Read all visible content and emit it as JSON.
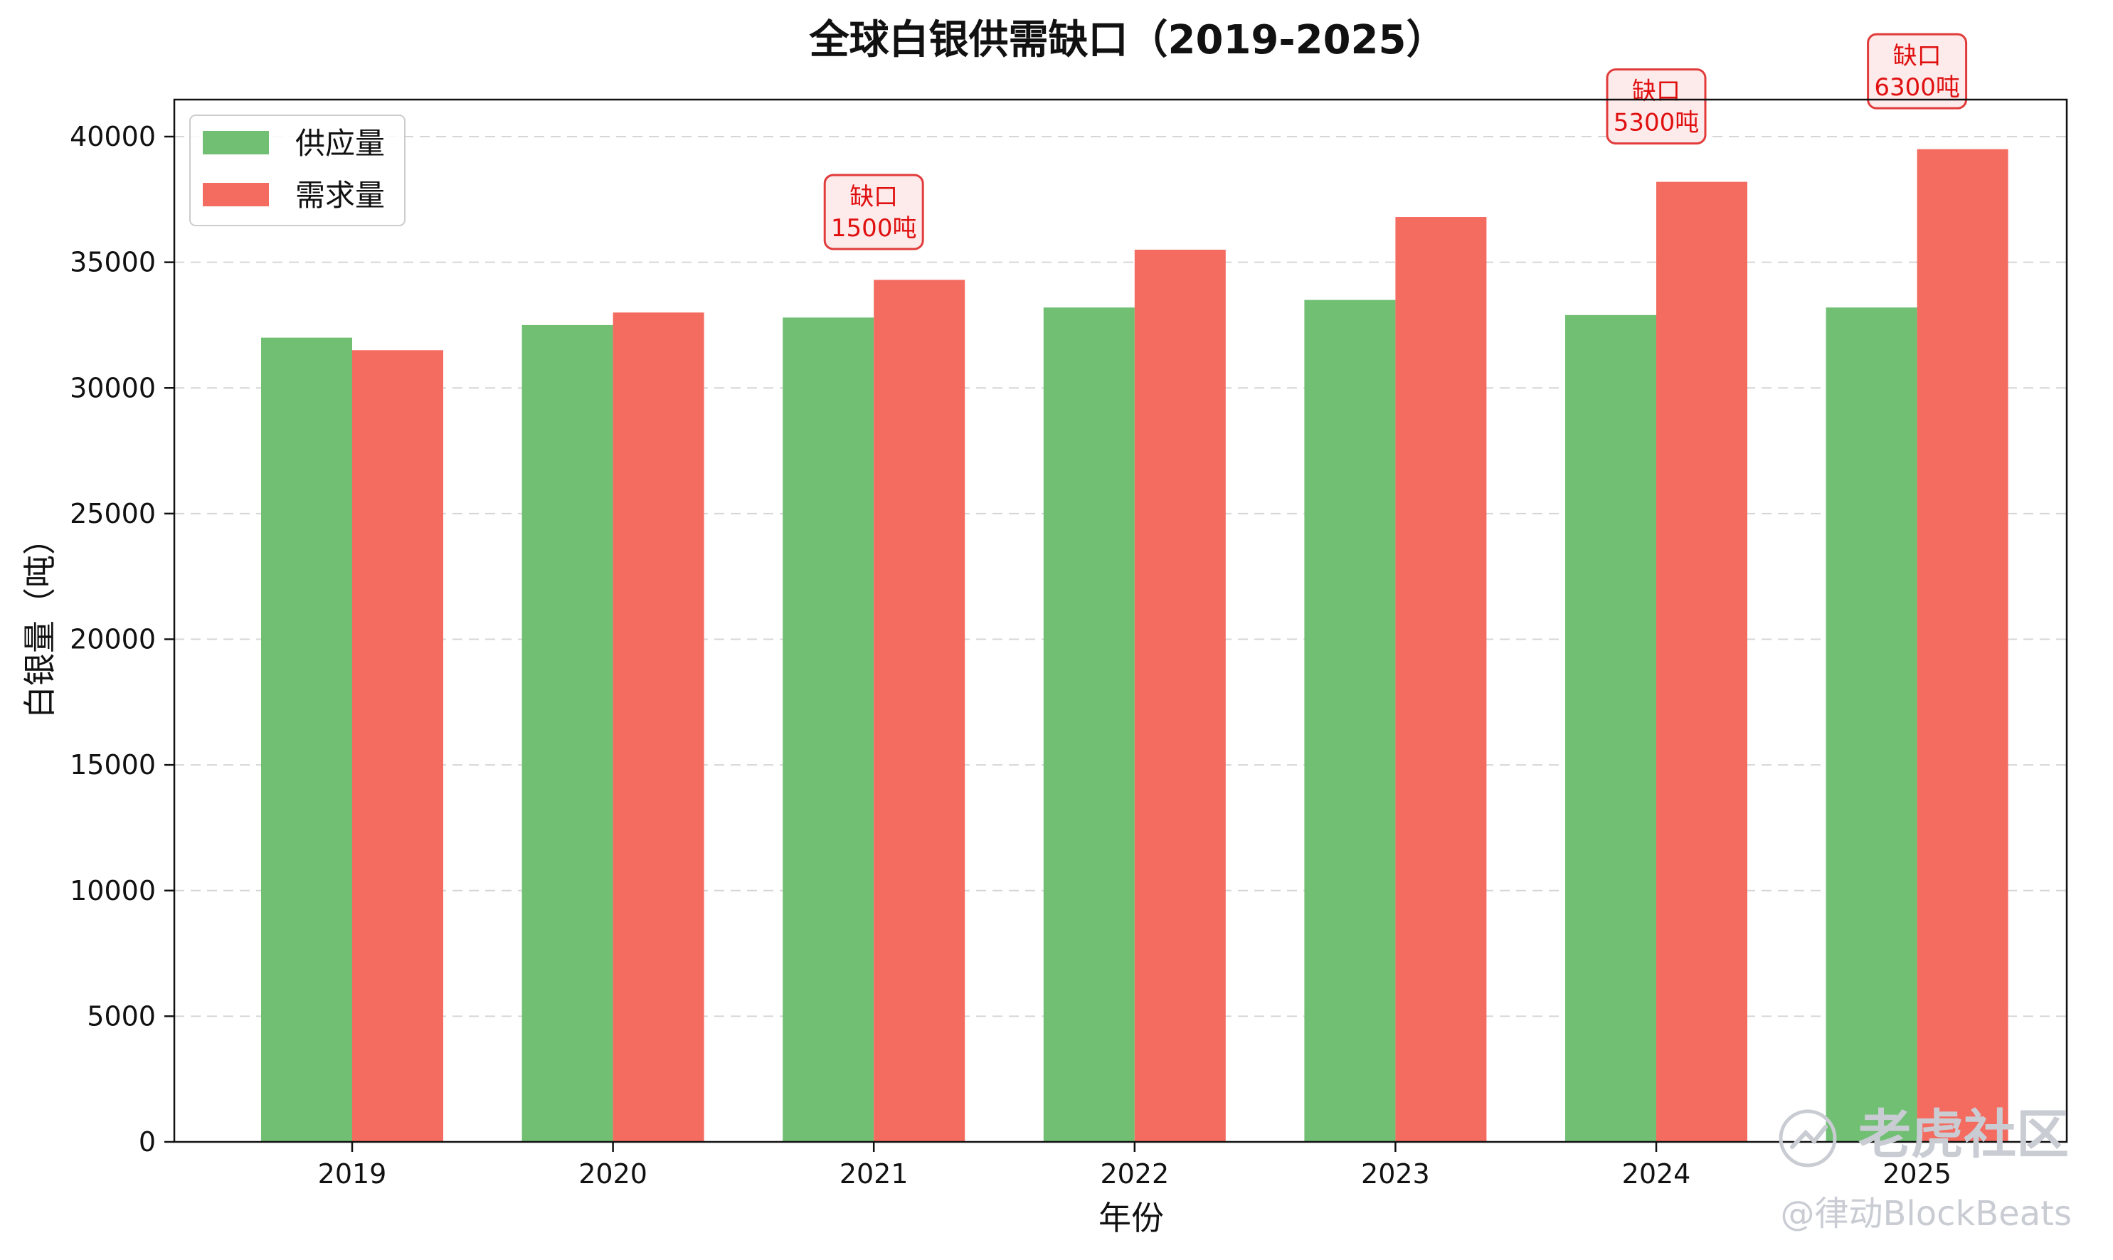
{
  "chart_data": {
    "type": "bar",
    "title": "全球白银供需缺口（2019-2025）",
    "xlabel": "年份",
    "ylabel": "白银量（吨）",
    "categories": [
      "2019",
      "2020",
      "2021",
      "2022",
      "2023",
      "2024",
      "2025"
    ],
    "series": [
      {
        "name": "供应量",
        "color": "#70bf73",
        "values": [
          32000,
          32500,
          32800,
          33200,
          33500,
          32900,
          33200
        ]
      },
      {
        "name": "需求量",
        "color": "#f46b60",
        "values": [
          31500,
          33000,
          34300,
          35500,
          36800,
          38200,
          39500
        ]
      }
    ],
    "ylim": [
      0,
      41500
    ],
    "yticks": [
      0,
      5000,
      10000,
      15000,
      20000,
      25000,
      30000,
      35000,
      40000
    ],
    "grid": "horizontal-dashed",
    "legend": "top-left",
    "annotations": [
      {
        "category": "2021",
        "lines": [
          "缺口",
          "1500吨"
        ],
        "y": 37000
      },
      {
        "category": "2024",
        "lines": [
          "缺口",
          "5300吨"
        ],
        "y": 41200
      },
      {
        "category": "2025",
        "lines": [
          "缺口",
          "6300吨"
        ],
        "y": 42600
      }
    ]
  },
  "watermark": {
    "brand": "老虎社区",
    "handle": "@律动BlockBeats"
  }
}
